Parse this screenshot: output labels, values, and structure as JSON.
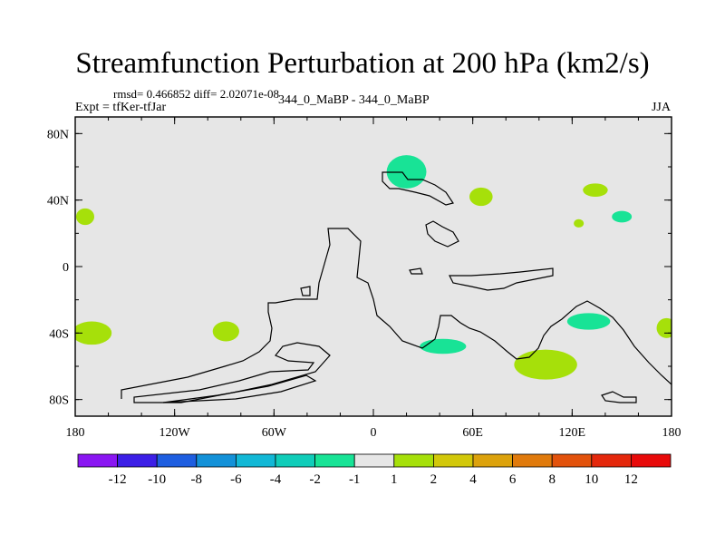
{
  "chart_data": {
    "type": "heatmap",
    "title": "Streamfunction Perturbation at 200 hPa (km2/s)",
    "stats_text": "rmsd= 0.466852 diff= 2.02071e-08",
    "left_label": "Expt = tfKer-tfJar",
    "center_label": "344_0_MaBP - 344_0_MaBP",
    "right_label": "JJA",
    "x_ticks": [
      "180",
      "120W",
      "60W",
      "0",
      "60E",
      "120E",
      "180"
    ],
    "y_ticks": [
      "80N",
      "40N",
      "0",
      "40S",
      "80S"
    ],
    "xlim": [
      -180,
      180
    ],
    "ylim": [
      -90,
      90
    ],
    "grid": false,
    "background_value_bin": "-1 to 1",
    "colorbar": {
      "labels": [
        "-12",
        "-10",
        "-8",
        "-6",
        "-4",
        "-2",
        "-1",
        "1",
        "2",
        "4",
        "6",
        "8",
        "10",
        "12"
      ],
      "colors": [
        "#8a16f2",
        "#3c1fe6",
        "#1e5ee0",
        "#1391d8",
        "#12b8d6",
        "#10cdb9",
        "#18e396",
        "#e6e6e6",
        "#a6e00a",
        "#d2c80a",
        "#dca20c",
        "#e07a0c",
        "#e2520c",
        "#e4280c",
        "#e80a0a"
      ]
    },
    "anomalies": [
      {
        "lon": 20,
        "lat": 57,
        "w": 24,
        "h": 20,
        "value_bin": "-2 to -1"
      },
      {
        "lon": 65,
        "lat": 42,
        "w": 14,
        "h": 11,
        "value_bin": "1 to 2"
      },
      {
        "lon": 134,
        "lat": 46,
        "w": 15,
        "h": 8,
        "value_bin": "1 to 2"
      },
      {
        "lon": 150,
        "lat": 30,
        "w": 12,
        "h": 7,
        "value_bin": "-2 to -1"
      },
      {
        "lon": 124,
        "lat": 26,
        "w": 6,
        "h": 5,
        "value_bin": "1 to 2"
      },
      {
        "lon": -174,
        "lat": 30,
        "w": 11,
        "h": 10,
        "value_bin": "1 to 2"
      },
      {
        "lon": -170,
        "lat": -40,
        "w": 24,
        "h": 14,
        "value_bin": "1 to 2"
      },
      {
        "lon": -89,
        "lat": -39,
        "w": 16,
        "h": 12,
        "value_bin": "1 to 2"
      },
      {
        "lon": 42,
        "lat": -48,
        "w": 28,
        "h": 9,
        "value_bin": "-2 to -1"
      },
      {
        "lon": 104,
        "lat": -59,
        "w": 38,
        "h": 18,
        "value_bin": "1 to 2"
      },
      {
        "lon": 130,
        "lat": -33,
        "w": 26,
        "h": 10,
        "value_bin": "-2 to -1"
      },
      {
        "lon": 177,
        "lat": -37,
        "w": 12,
        "h": 12,
        "value_bin": "1 to 2"
      }
    ]
  }
}
